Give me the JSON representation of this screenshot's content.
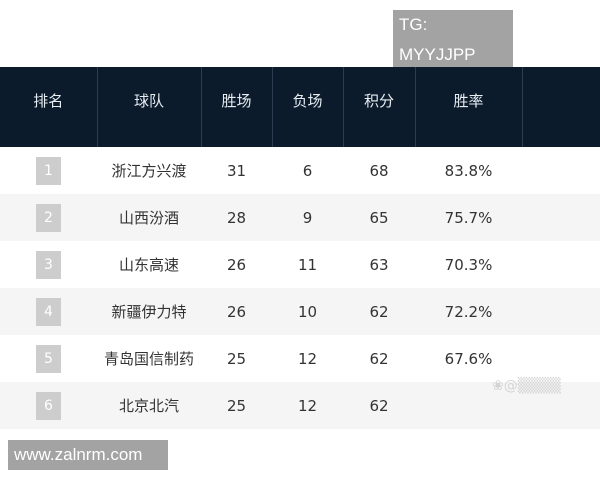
{
  "watermarks": {
    "top": "TG: MYYJJPP",
    "bottom": "www.zalnrm.com"
  },
  "table": {
    "headers": [
      "排名",
      "球队",
      "胜场",
      "负场",
      "积分",
      "胜率"
    ],
    "rows": [
      {
        "rank": "1",
        "team": "浙江方兴渡",
        "wins": "31",
        "losses": "6",
        "points": "68",
        "rate": "83.8%"
      },
      {
        "rank": "2",
        "team": "山西汾酒",
        "wins": "28",
        "losses": "9",
        "points": "65",
        "rate": "75.7%"
      },
      {
        "rank": "3",
        "team": "山东高速",
        "wins": "26",
        "losses": "11",
        "points": "63",
        "rate": "70.3%"
      },
      {
        "rank": "4",
        "team": "新疆伊力特",
        "wins": "26",
        "losses": "10",
        "points": "62",
        "rate": "72.2%"
      },
      {
        "rank": "5",
        "team": "青岛国信制药",
        "wins": "25",
        "losses": "12",
        "points": "62",
        "rate": "67.6%"
      },
      {
        "rank": "6",
        "team": "北京北汽",
        "wins": "25",
        "losses": "12",
        "points": "62",
        "rate": ""
      }
    ]
  },
  "colors": {
    "header_bg": "#0b1b2c",
    "rank_badge": "#cdcdcd",
    "alt_row": "#f5f5f5"
  }
}
